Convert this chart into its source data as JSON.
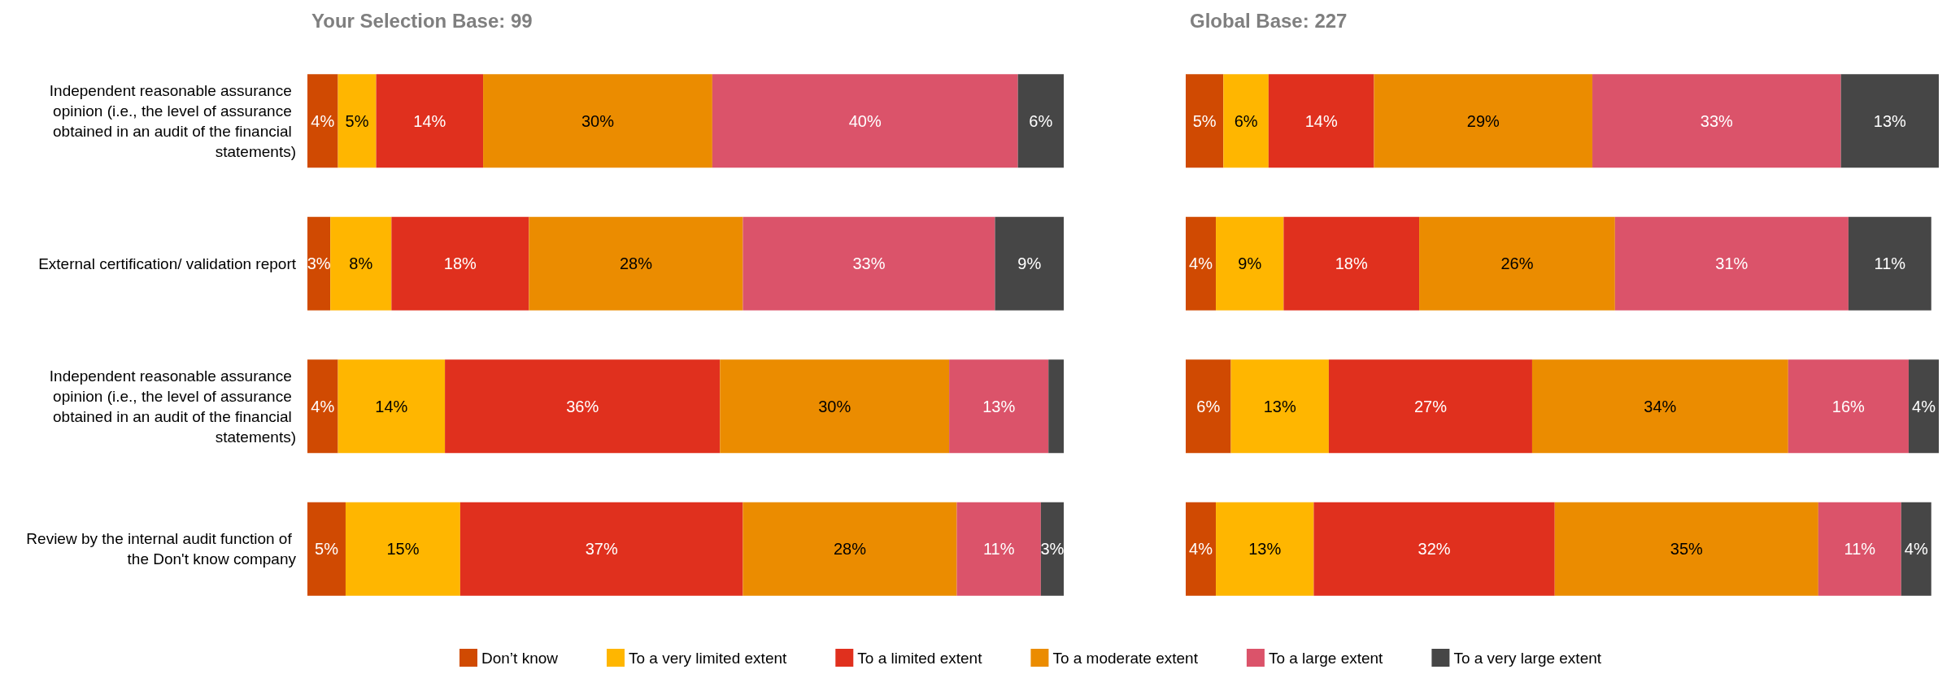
{
  "chart_data": [
    {
      "type": "bar",
      "orientation": "horizontal",
      "stacked": true,
      "title": "Your Selection Base: 99",
      "categories": [
        "Independent reasonable assurance opinion (i.e., the level of assurance obtained in an audit of the financial statements)",
        "External certification/ validation report",
        "Independent reasonable assurance opinion (i.e., the level of assurance obtained in an audit of the financial statements)",
        "Review by the internal audit function of the Don't know company"
      ],
      "tick_labels": "y",
      "grid": false,
      "legend": "bottom",
      "series": [
        {
          "name": "Don’t know",
          "color": "#d04a02",
          "values": [
            4,
            3,
            4,
            5
          ],
          "value_labels": [
            "4%",
            "3%",
            "4%",
            "5%"
          ]
        },
        {
          "name": "To a very limited extent",
          "color": "#ffb600",
          "values": [
            5,
            8,
            14,
            15
          ],
          "value_labels": [
            "5%",
            "8%",
            "14%",
            "15%"
          ]
        },
        {
          "name": "To a limited extent",
          "color": "#e0301e",
          "values": [
            14,
            18,
            36,
            37
          ],
          "value_labels": [
            "14%",
            "18%",
            "36%",
            "37%"
          ]
        },
        {
          "name": "To a moderate extent",
          "color": "#eb8c00",
          "values": [
            30,
            28,
            30,
            28
          ],
          "value_labels": [
            "30%",
            "28%",
            "30%",
            "28%"
          ]
        },
        {
          "name": "To a large extent",
          "color": "#db536a",
          "values": [
            40,
            33,
            13,
            11
          ],
          "value_labels": [
            "40%",
            "33%",
            "13%",
            "11%"
          ]
        },
        {
          "name": "To a very large extent",
          "color": "#464646",
          "values": [
            6,
            9,
            2,
            3
          ],
          "value_labels": [
            "6%",
            "9%",
            null,
            "3%"
          ]
        }
      ]
    },
    {
      "type": "bar",
      "orientation": "horizontal",
      "stacked": true,
      "title": "Global Base: 227",
      "categories": [
        null,
        null,
        null,
        null
      ],
      "tick_labels": false,
      "grid": false,
      "series": [
        {
          "color": "#d04a02",
          "values": [
            5,
            4,
            6,
            4
          ],
          "value_labels": [
            "5%",
            "4%",
            "6%",
            "4%"
          ]
        },
        {
          "color": "#ffb600",
          "values": [
            6,
            9,
            13,
            13
          ],
          "value_labels": [
            "6%",
            "9%",
            "13%",
            "13%"
          ]
        },
        {
          "color": "#e0301e",
          "values": [
            14,
            18,
            27,
            32
          ],
          "value_labels": [
            "14%",
            "18%",
            "27%",
            "32%"
          ]
        },
        {
          "color": "#eb8c00",
          "values": [
            29,
            26,
            34,
            35
          ],
          "value_labels": [
            "29%",
            "26%",
            "34%",
            "35%"
          ]
        },
        {
          "color": "#db536a",
          "values": [
            33,
            31,
            16,
            11
          ],
          "value_labels": [
            "33%",
            "31%",
            "16%",
            "11%"
          ]
        },
        {
          "color": "#464646",
          "values": [
            13,
            11,
            4,
            4
          ],
          "value_labels": [
            "13%",
            "11%",
            "4%",
            "4%"
          ]
        }
      ]
    }
  ]
}
